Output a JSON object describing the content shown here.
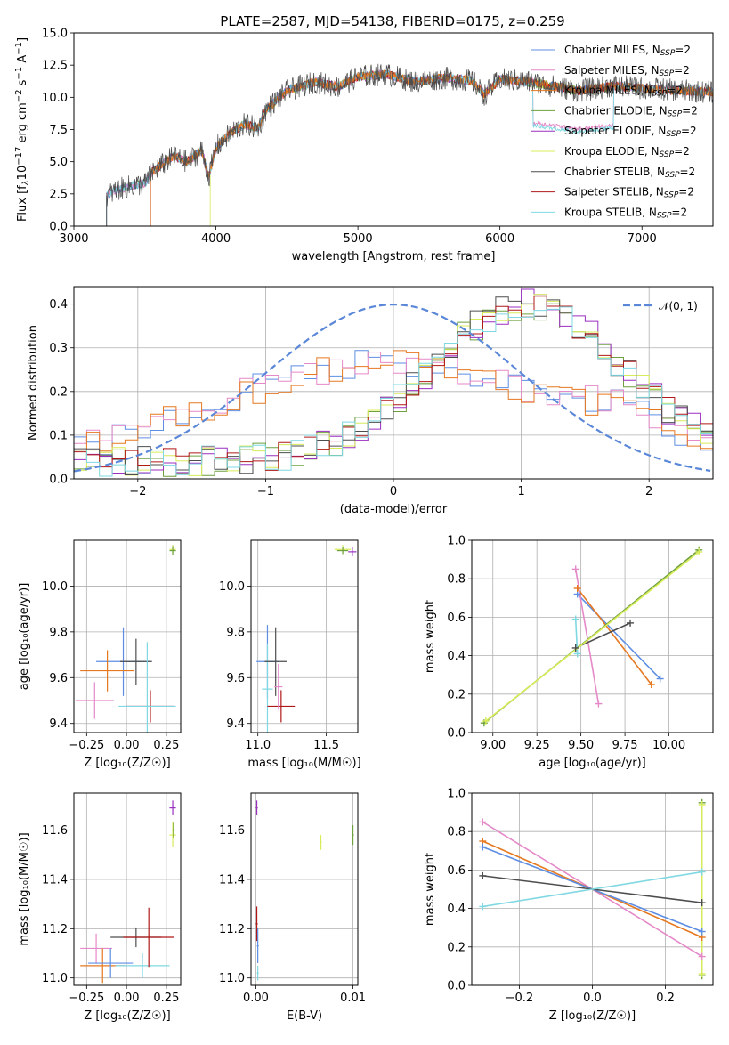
{
  "figure": {
    "title": "PLATE=2587, MJD=54138, FIBERID=0175, z=0.259"
  },
  "series": [
    {
      "name": "Chabrier MILES, N",
      "color": "#5d8ee3"
    },
    {
      "name": "Salpeter MILES, N",
      "color": "#e589c8"
    },
    {
      "name": "Kroupa MILES, N",
      "color": "#e67820"
    },
    {
      "name": "Chabrier ELODIE, N",
      "color": "#6ea040"
    },
    {
      "name": "Salpeter ELODIE, N",
      "color": "#9a2fc0"
    },
    {
      "name": "Kroupa ELODIE, N",
      "color": "#d8ec5a"
    },
    {
      "name": "Chabrier STELIB, N",
      "color": "#4d4d4d"
    },
    {
      "name": "Salpeter STELIB, N",
      "color": "#b01818"
    },
    {
      "name": "Kroupa STELIB, N",
      "color": "#7fd8e2"
    }
  ],
  "legend_suffix": {
    "sub": "SSP",
    "eq": "=2"
  },
  "chart_data": [
    {
      "id": "spectrum",
      "type": "line",
      "xlabel": "wavelength [Angstrom, rest frame]",
      "ylabel_parts": [
        "Flux [f",
        "λ",
        "10",
        "−17",
        " erg cm",
        "−2",
        " s",
        "−1",
        " A",
        "−1",
        "]"
      ],
      "xlim": [
        3000,
        7500
      ],
      "ylim": [
        0,
        15
      ],
      "xticks": [
        "3000",
        "4000",
        "5000",
        "6000",
        "7000"
      ],
      "yticks": [
        "0.0",
        "2.5",
        "5.0",
        "7.5",
        "10.0",
        "12.5",
        "15.0"
      ],
      "legend": "top-right",
      "grid": false,
      "spectrum_nodes": [
        [
          3200,
          0
        ],
        [
          3210,
          2.2
        ],
        [
          3300,
          2.8
        ],
        [
          3400,
          3.1
        ],
        [
          3500,
          3.3
        ],
        [
          3550,
          4.2
        ],
        [
          3700,
          5.4
        ],
        [
          3800,
          5.0
        ],
        [
          3900,
          5.9
        ],
        [
          3950,
          3.8
        ],
        [
          4000,
          6.1
        ],
        [
          4100,
          7.2
        ],
        [
          4200,
          7.9
        ],
        [
          4300,
          7.6
        ],
        [
          4350,
          9.0
        ],
        [
          4500,
          10.5
        ],
        [
          4700,
          11.2
        ],
        [
          4860,
          10.8
        ],
        [
          5000,
          11.6
        ],
        [
          5200,
          11.8
        ],
        [
          5400,
          11.2
        ],
        [
          5600,
          11.5
        ],
        [
          5800,
          11.3
        ],
        [
          5890,
          10.2
        ],
        [
          6000,
          11.4
        ],
        [
          6200,
          11.2
        ],
        [
          6562,
          10.5
        ],
        [
          6800,
          10.9
        ],
        [
          7000,
          10.7
        ],
        [
          7300,
          10.5
        ],
        [
          7500,
          10.4
        ]
      ]
    },
    {
      "id": "residuals",
      "type": "line",
      "xlabel": "(data-model)/error",
      "ylabel": "Normed distribution",
      "xlim": [
        -2.5,
        2.5
      ],
      "ylim": [
        0,
        0.44
      ],
      "xticks": [
        "−2",
        "−1",
        "0",
        "1",
        "2"
      ],
      "yticks": [
        "0.0",
        "0.1",
        "0.2",
        "0.3",
        "0.4"
      ],
      "grid": true,
      "legend": "top-right",
      "gaussian_label": "𝒩(0, 1)",
      "gaussian_color": "#5b87d8"
    },
    {
      "id": "age_vs_Z",
      "type": "scatter",
      "xlabel": "Z [log₁₀(Z/Z☉)]",
      "ylabel": "age  [log₁₀(age/yr)]",
      "xlim": [
        -0.33,
        0.34
      ],
      "ylim": [
        9.36,
        10.2
      ],
      "xticks": [
        "−0.25",
        "0.00",
        "0.25"
      ],
      "yticks": [
        "9.4",
        "9.6",
        "9.8",
        "10.0"
      ],
      "grid": true
    },
    {
      "id": "age_vs_mass",
      "type": "scatter",
      "xlabel": "mass [log₁₀(M/M☉)]",
      "xlim": [
        10.95,
        11.73
      ],
      "ylim": [
        9.36,
        10.2
      ],
      "xticks": [
        "11.0",
        "11.5"
      ],
      "yticks": [
        "9.4",
        "9.6",
        "9.8",
        "10.0"
      ],
      "grid": true
    },
    {
      "id": "massweight_vs_age",
      "type": "line",
      "xlabel": "age  [log₁₀(age/yr)]",
      "ylabel": "mass weight",
      "xlim": [
        8.88,
        10.25
      ],
      "ylim": [
        0,
        1
      ],
      "xticks": [
        "9.00",
        "9.25",
        "9.50",
        "9.75",
        "10.00"
      ],
      "yticks": [
        "0.0",
        "0.2",
        "0.4",
        "0.6",
        "0.8",
        "1.0"
      ],
      "grid": true,
      "lines": [
        {
          "color": "#5d8ee3",
          "pts": [
            [
              9.48,
              0.72
            ],
            [
              9.95,
              0.28
            ]
          ]
        },
        {
          "color": "#e67820",
          "pts": [
            [
              9.48,
              0.75
            ],
            [
              9.9,
              0.25
            ]
          ]
        },
        {
          "color": "#e589c8",
          "pts": [
            [
              9.47,
              0.85
            ],
            [
              9.6,
              0.15
            ]
          ]
        },
        {
          "color": "#4d4d4d",
          "pts": [
            [
              9.47,
              0.44
            ],
            [
              9.78,
              0.57
            ]
          ]
        },
        {
          "color": "#7fd8e2",
          "pts": [
            [
              9.47,
              0.59
            ],
            [
              9.48,
              0.41
            ]
          ]
        },
        {
          "color": "#6ea040",
          "pts": [
            [
              8.95,
              0.05
            ],
            [
              10.17,
              0.95
            ]
          ]
        },
        {
          "color": "#d8ec5a",
          "pts": [
            [
              8.96,
              0.06
            ],
            [
              10.17,
              0.94
            ]
          ]
        }
      ]
    },
    {
      "id": "mass_vs_Z",
      "type": "scatter",
      "xlabel": "Z [log₁₀(Z/Z☉)]",
      "ylabel": "mass [log₁₀(M/M☉)]",
      "xlim": [
        -0.33,
        0.34
      ],
      "ylim": [
        10.97,
        11.75
      ],
      "xticks": [
        "−0.25",
        "0.00",
        "0.25"
      ],
      "yticks": [
        "11.0",
        "11.2",
        "11.4",
        "11.6"
      ],
      "grid": true
    },
    {
      "id": "mass_vs_ebv",
      "type": "scatter",
      "xlabel": "E(B-V)",
      "xlim": [
        -0.0005,
        0.0105
      ],
      "ylim": [
        10.97,
        11.75
      ],
      "xticks": [
        "0.00",
        "0.01"
      ],
      "yticks": [
        "11.0",
        "11.2",
        "11.4",
        "11.6"
      ],
      "grid": true
    },
    {
      "id": "massweight_vs_Z",
      "type": "line",
      "xlabel": "Z [log₁₀(Z/Z☉)]",
      "ylabel": "mass weight",
      "xlim": [
        -0.33,
        0.33
      ],
      "ylim": [
        0,
        1
      ],
      "xticks": [
        "−0.2",
        "0.0",
        "0.2"
      ],
      "yticks": [
        "0.0",
        "0.2",
        "0.4",
        "0.6",
        "0.8",
        "1.0"
      ],
      "grid": true,
      "lines": [
        {
          "color": "#e589c8",
          "pts": [
            [
              -0.3,
              0.85
            ],
            [
              0.3,
              0.15
            ]
          ]
        },
        {
          "color": "#e67820",
          "pts": [
            [
              -0.3,
              0.75
            ],
            [
              0.3,
              0.25
            ]
          ]
        },
        {
          "color": "#5d8ee3",
          "pts": [
            [
              -0.3,
              0.72
            ],
            [
              0.3,
              0.28
            ]
          ]
        },
        {
          "color": "#4d4d4d",
          "pts": [
            [
              -0.3,
              0.57
            ],
            [
              0.3,
              0.43
            ]
          ]
        },
        {
          "color": "#7fd8e2",
          "pts": [
            [
              -0.3,
              0.41
            ],
            [
              0.3,
              0.59
            ]
          ]
        },
        {
          "color": "#6ea040",
          "pts": [
            [
              0.3,
              0.05
            ],
            [
              0.3,
              0.95
            ]
          ]
        },
        {
          "color": "#d8ec5a",
          "pts": [
            [
              0.3,
              0.06
            ],
            [
              0.3,
              0.94
            ]
          ]
        }
      ]
    }
  ]
}
